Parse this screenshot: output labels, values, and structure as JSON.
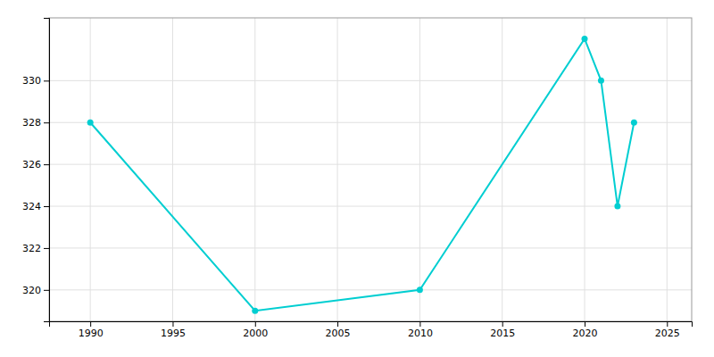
{
  "chart_data": {
    "type": "line",
    "x": [
      1990,
      2000,
      2010,
      2020,
      2021,
      2022,
      2023
    ],
    "values": [
      328,
      319,
      320,
      332,
      330,
      324,
      328
    ],
    "color": "#00CED1",
    "marker": "circle",
    "xlim": [
      1987.5,
      2026.5
    ],
    "ylim": [
      318.5,
      333.0
    ],
    "xticks": [
      1990,
      1995,
      2000,
      2005,
      2010,
      2015,
      2020,
      2025
    ],
    "yticks": [
      320,
      322,
      324,
      326,
      328,
      330
    ],
    "grid": true
  }
}
